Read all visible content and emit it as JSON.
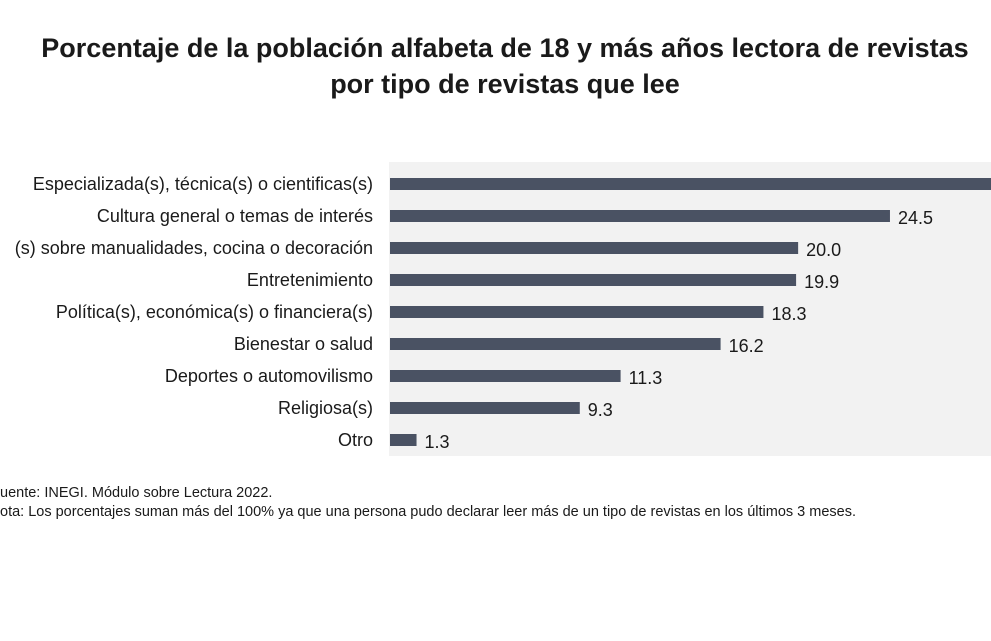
{
  "title_lines": [
    "Porcentaje de la población alfabeta de 18 y más años lectora de revistas",
    "por tipo de revistas que lee"
  ],
  "chart_data": {
    "type": "bar",
    "orientation": "horizontal",
    "categories": [
      "Especializada(s), técnica(s) o cientificas(s)",
      "Cultura general o temas de interés",
      "(s) sobre manualidades, cocina o decoración",
      "Entretenimiento",
      "Política(s), económica(s) o financiera(s)",
      "Bienestar o salud",
      "Deportes o automovilismo",
      "Religiosa(s)",
      "Otro"
    ],
    "values": [
      29.5,
      24.5,
      20.0,
      19.9,
      18.3,
      16.2,
      11.3,
      9.3,
      1.3
    ],
    "value_labels": [
      "",
      "24.5",
      "20.0",
      "19.9",
      "18.3",
      "16.2",
      "11.3",
      "9.3",
      "1.3"
    ],
    "xlim": [
      0,
      29.5
    ],
    "grid": false,
    "colors": {
      "bar": "#4a5263",
      "plot_background": "#f2f2f2"
    }
  },
  "notes": {
    "source": "uente: INEGI. Módulo sobre Lectura 2022.",
    "note": "ota: Los porcentajes suman más del 100% ya que una persona pudo declarar leer más de un tipo de revistas en los últimos 3 meses."
  }
}
